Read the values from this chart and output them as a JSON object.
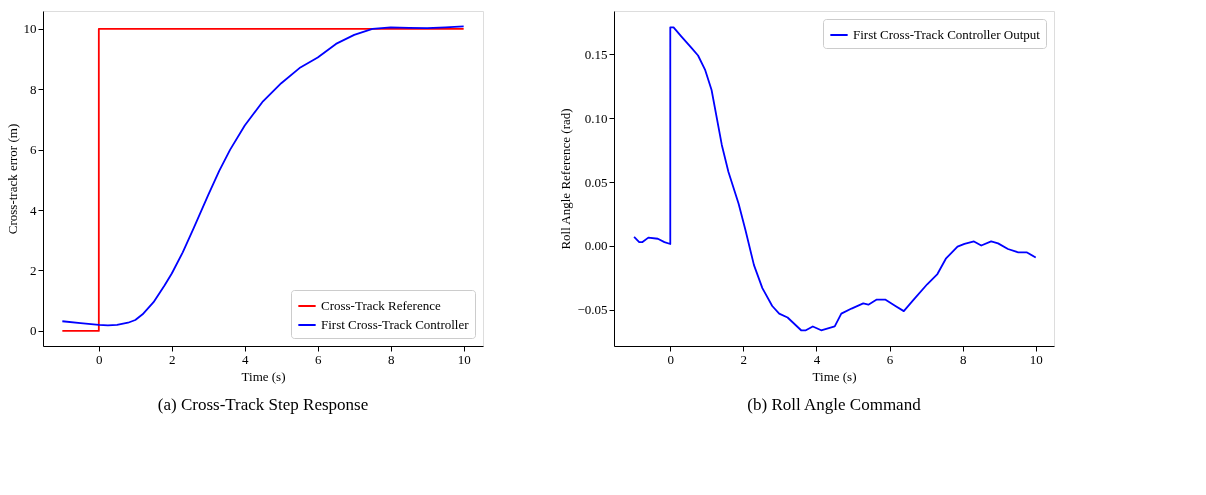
{
  "chart_data": [
    {
      "type": "line",
      "title": "(a) Cross-Track Step Response",
      "xlabel": "Time (s)",
      "ylabel": "Cross-track error (m)",
      "xlim": [
        -1.53,
        10.53
      ],
      "ylim": [
        -0.5,
        10.59
      ],
      "xticks": [
        0,
        2,
        4,
        6,
        8,
        10
      ],
      "yticks": [
        0,
        2,
        4,
        6,
        8,
        10
      ],
      "grid": false,
      "legend": "bottom right",
      "series": [
        {
          "name": "Cross-Track Reference",
          "color": "#ff0000",
          "x": [
            -1,
            0,
            0,
            10
          ],
          "values": [
            0,
            0,
            10,
            10
          ]
        },
        {
          "name": "First Cross-Track Controller",
          "color": "#0000ff",
          "x": [
            -1,
            -0.5,
            0,
            0.25,
            0.5,
            0.8,
            1,
            1.2,
            1.5,
            1.8,
            2,
            2.3,
            2.6,
            3,
            3.3,
            3.6,
            4,
            4.5,
            5,
            5.5,
            6,
            6.5,
            7,
            7.5,
            8,
            8.5,
            9,
            9.5,
            10
          ],
          "values": [
            0.32,
            0.26,
            0.2,
            0.18,
            0.2,
            0.27,
            0.36,
            0.55,
            0.95,
            1.5,
            1.9,
            2.6,
            3.4,
            4.5,
            5.3,
            6.0,
            6.8,
            7.6,
            8.2,
            8.7,
            9.05,
            9.5,
            9.8,
            10.0,
            10.05,
            10.03,
            10.02,
            10.05,
            10.08
          ]
        }
      ]
    },
    {
      "type": "line",
      "title": "(b) Roll Angle Command",
      "xlabel": "Time (s)",
      "ylabel": "Roll Angle Reference (rad)",
      "xlim": [
        -1.54,
        10.5
      ],
      "ylim": [
        -0.0783,
        0.1838
      ],
      "xticks": [
        0,
        2,
        4,
        6,
        8,
        10
      ],
      "yticks": [
        {
          "value": -0.05,
          "label": "−0.05"
        },
        {
          "value": 0,
          "label": "0.00"
        },
        {
          "value": 0.05,
          "label": "0.05"
        },
        {
          "value": 0.1,
          "label": "0.10"
        },
        {
          "value": 0.15,
          "label": "0.15"
        }
      ],
      "grid": false,
      "legend": "top right",
      "series": [
        {
          "name": "First Cross-Track Controller Output",
          "color": "#0000ff",
          "x": [
            -0.99,
            -0.85,
            -0.76,
            -0.6,
            -0.34,
            -0.16,
            0,
            0,
            0.09,
            0.3,
            0.58,
            0.76,
            0.95,
            1.13,
            1.41,
            1.59,
            1.87,
            2.06,
            2.29,
            2.52,
            2.79,
            2.98,
            3.21,
            3.58,
            3.71,
            3.9,
            4.13,
            4.5,
            4.68,
            4.96,
            5.28,
            5.42,
            5.65,
            5.88,
            6.16,
            6.39,
            6.66,
            7.03,
            7.31,
            7.54,
            7.86,
            8.05,
            8.31,
            8.51,
            8.78,
            8.97,
            9.24,
            9.52,
            9.75,
            10
          ],
          "values": [
            0.007,
            0.003,
            0.003,
            0.0065,
            0.0056,
            0.003,
            0.0015,
            0.171,
            0.171,
            0.164,
            0.155,
            0.149,
            0.138,
            0.122,
            0.079,
            0.058,
            0.033,
            0.012,
            -0.015,
            -0.033,
            -0.047,
            -0.053,
            -0.056,
            -0.066,
            -0.066,
            -0.063,
            -0.066,
            -0.063,
            -0.053,
            -0.049,
            -0.045,
            -0.046,
            -0.042,
            -0.042,
            -0.047,
            -0.051,
            -0.042,
            -0.03,
            -0.022,
            -0.01,
            -0.0005,
            0.0016,
            0.0035,
            0.0003,
            0.0035,
            0.002,
            -0.0024,
            -0.005,
            -0.005,
            -0.009
          ]
        }
      ]
    }
  ]
}
